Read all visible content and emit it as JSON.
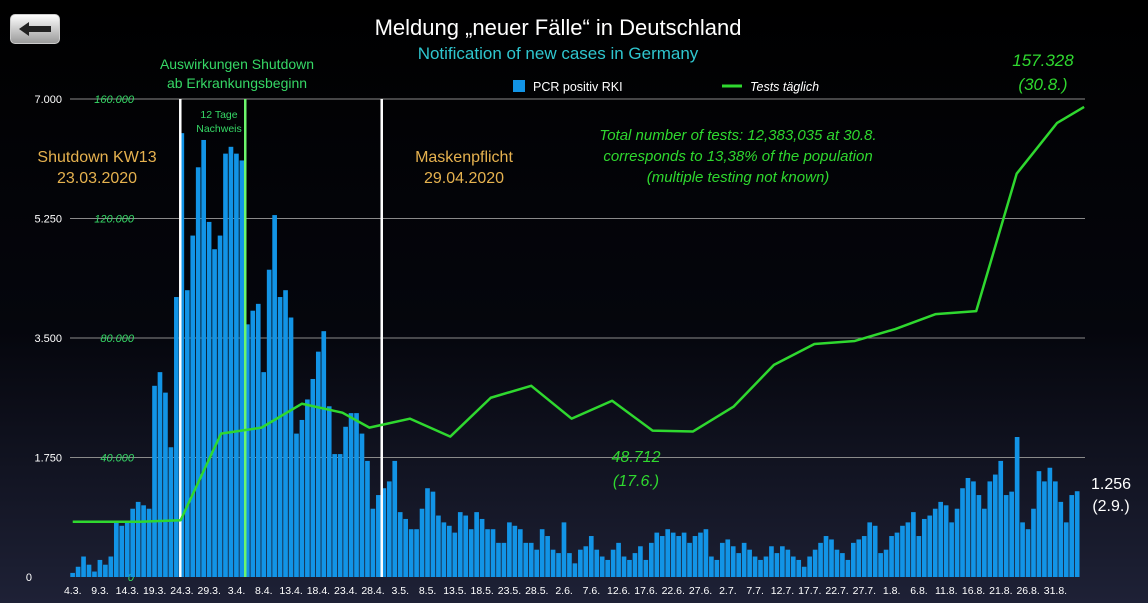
{
  "nav": {
    "back_icon": "left-arrow-icon"
  },
  "colors": {
    "bars": "#1294e6",
    "line": "#2fd82f",
    "annotation_orange": "#e6b24f",
    "annotation_green": "#36d866",
    "subtitle": "#2fc6cf"
  },
  "chart_data": {
    "type": "bar",
    "title": "Meldung „neuer Fälle“ in Deutschland",
    "subtitle": "Notification of new cases in Germany",
    "ylim_left": [
      0,
      7000
    ],
    "ylim_right": [
      0,
      160000
    ],
    "left_ticks": [
      "0",
      "1.750",
      "3.500",
      "5.250",
      "7.000"
    ],
    "left_tick_values": [
      0,
      1750,
      3500,
      5250,
      7000
    ],
    "right_ticks": [
      "0",
      "40.000",
      "80.000",
      "120.000",
      "160.000"
    ],
    "right_tick_values": [
      0,
      40000,
      80000,
      120000,
      160000
    ],
    "x_tick_labels": [
      "4.3.",
      "9.3.",
      "14.3.",
      "19.3.",
      "24.3.",
      "29.3.",
      "3.4.",
      "8.4.",
      "13.4.",
      "18.4.",
      "23.4.",
      "28.4.",
      "3.5.",
      "8.5.",
      "13.5.",
      "18.5.",
      "23.5.",
      "28.5.",
      "2.6.",
      "7.6.",
      "12.6.",
      "17.6.",
      "22.6.",
      "27.6.",
      "2.7.",
      "7.7.",
      "12.7.",
      "17.7.",
      "22.7.",
      "27.7.",
      "1.8.",
      "6.8.",
      "11.8.",
      "16.8.",
      "21.8.",
      "26.8.",
      "31.8."
    ],
    "first_date": "4.3.",
    "legend": {
      "bars_label": "PCR positiv RKI",
      "line_label": "Tests täglich"
    },
    "series": [
      {
        "name": "PCR positiv RKI",
        "type": "bar",
        "values": [
          60,
          150,
          300,
          180,
          80,
          250,
          180,
          300,
          800,
          750,
          800,
          1000,
          1100,
          1050,
          1000,
          2800,
          3000,
          2700,
          1900,
          4100,
          6500,
          4200,
          5000,
          6000,
          6400,
          5200,
          4800,
          5000,
          6200,
          6300,
          6200,
          6100,
          3700,
          3900,
          4000,
          3000,
          4500,
          5300,
          4100,
          4200,
          3800,
          2100,
          2300,
          2600,
          2900,
          3300,
          3600,
          2500,
          1800,
          1800,
          2200,
          2400,
          2400,
          2100,
          1700,
          1000,
          1200,
          1300,
          1400,
          1700,
          950,
          850,
          700,
          700,
          1000,
          1300,
          1250,
          900,
          800,
          750,
          650,
          950,
          900,
          700,
          950,
          850,
          700,
          700,
          500,
          500,
          800,
          750,
          700,
          500,
          500,
          400,
          700,
          600,
          400,
          350,
          800,
          350,
          200,
          400,
          450,
          600,
          400,
          300,
          250,
          400,
          500,
          300,
          250,
          350,
          450,
          250,
          500,
          650,
          600,
          700,
          650,
          600,
          650,
          500,
          600,
          650,
          700,
          300,
          250,
          500,
          550,
          450,
          350,
          500,
          400,
          300,
          250,
          300,
          450,
          350,
          450,
          400,
          300,
          250,
          150,
          300,
          400,
          500,
          600,
          550,
          400,
          350,
          250,
          500,
          550,
          600,
          800,
          750,
          350,
          400,
          600,
          650,
          750,
          800,
          950,
          600,
          850,
          900,
          1000,
          1100,
          1050,
          800,
          1000,
          1300,
          1450,
          1400,
          1200,
          1000,
          1400,
          1500,
          1700,
          1200,
          1250,
          2050,
          800,
          700,
          1000,
          1550,
          1400,
          1600,
          1400,
          1100,
          800,
          1200,
          1256
        ]
      },
      {
        "name": "Tests täglich",
        "type": "line",
        "points": [
          [
            0,
            18500
          ],
          [
            5,
            18500
          ],
          [
            8,
            19000
          ],
          [
            11,
            48000
          ],
          [
            14,
            50000
          ],
          [
            17,
            58000
          ],
          [
            20,
            55000
          ],
          [
            22,
            50000
          ],
          [
            25,
            53000
          ],
          [
            28,
            47000
          ],
          [
            31,
            60000
          ],
          [
            34,
            64000
          ],
          [
            37,
            53000
          ],
          [
            40,
            59000
          ],
          [
            43,
            49000
          ],
          [
            46,
            48712
          ],
          [
            49,
            57000
          ],
          [
            52,
            71000
          ],
          [
            55,
            78000
          ],
          [
            58,
            79000
          ],
          [
            61,
            83000
          ],
          [
            64,
            88000
          ],
          [
            67,
            89000
          ],
          [
            70,
            135000
          ],
          [
            73,
            152000
          ],
          [
            75,
            157328
          ]
        ]
      }
    ],
    "annotations": [
      {
        "id": "shutdown",
        "text": [
          "Shutdown KW13",
          "23.03.2020"
        ]
      },
      {
        "id": "shutdown_effect",
        "text": [
          "Auswirkungen Shutdown",
          "ab Erkrankungsbeginn"
        ]
      },
      {
        "id": "detection",
        "text": [
          "12 Tage",
          "Nachweis"
        ]
      },
      {
        "id": "masks",
        "text": [
          "Maskenpflicht",
          "29.04.2020"
        ]
      },
      {
        "id": "total",
        "text": [
          "Total number of tests: 12,383,035 at 30.8.",
          "corresponds to 13,38% of the population",
          "(multiple testing not known)"
        ]
      },
      {
        "id": "min_tests",
        "text": [
          "48.712",
          "(17.6.)"
        ]
      },
      {
        "id": "max_tests",
        "text": [
          "157.328",
          "(30.8.)"
        ]
      },
      {
        "id": "last_cases",
        "text": [
          "1.256",
          "(2.9.)"
        ]
      }
    ]
  }
}
